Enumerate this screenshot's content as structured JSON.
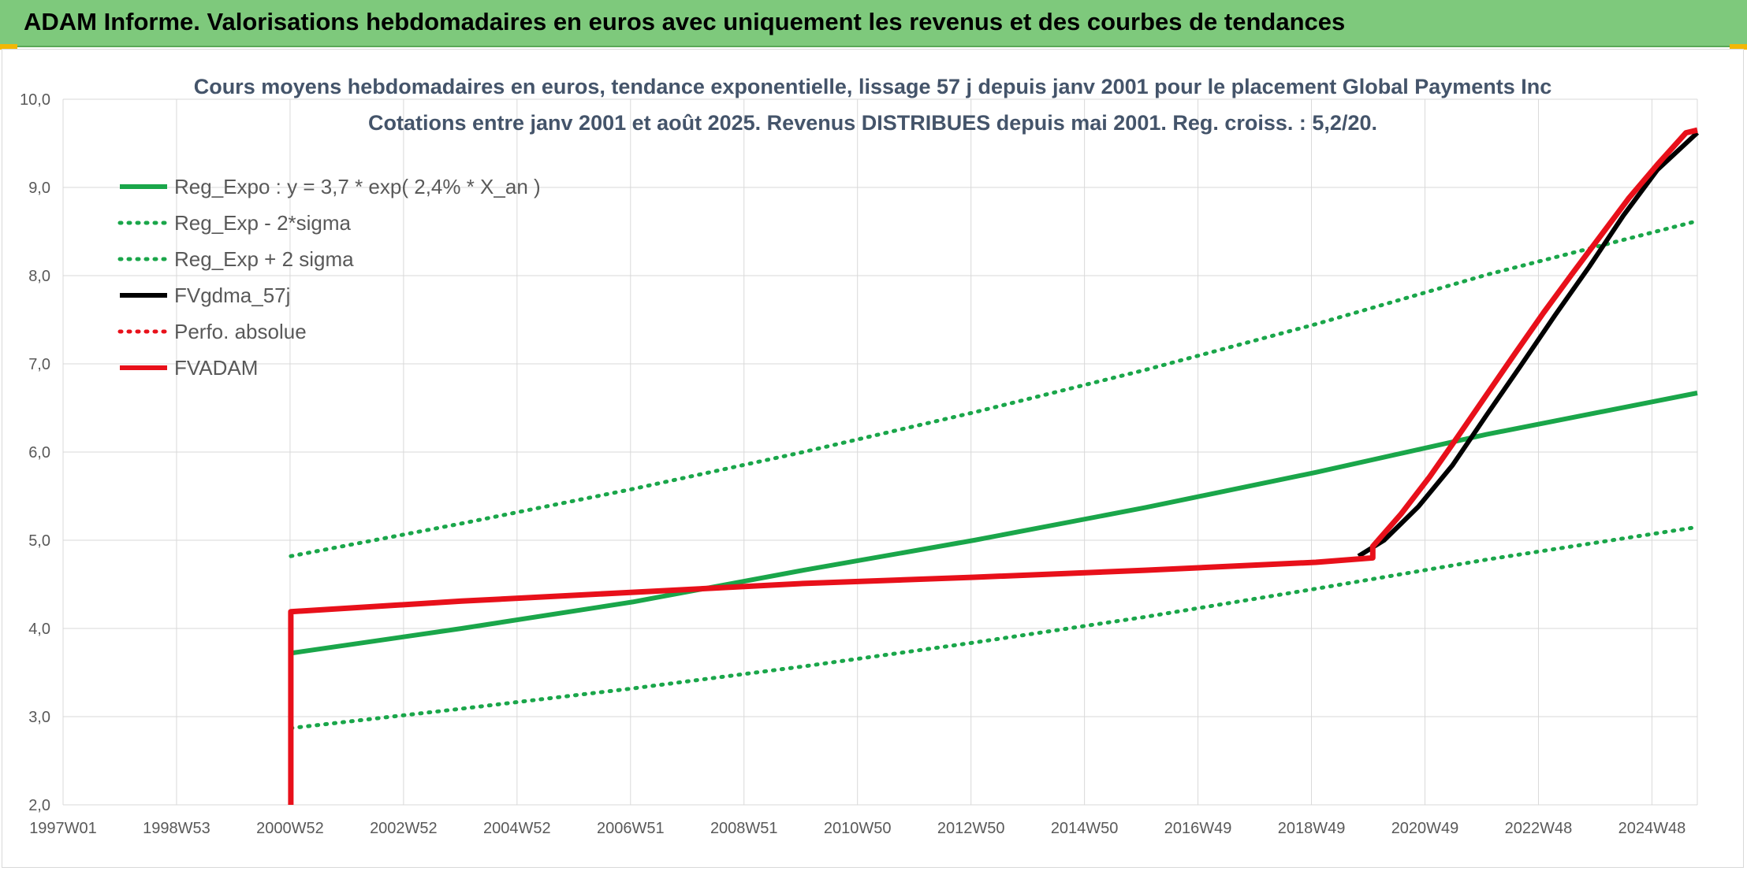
{
  "header": {
    "title": "ADAM Informe. Valorisations hebdomadaires en euros avec uniquement les revenus et des courbes de tendances"
  },
  "chart_data": {
    "type": "line",
    "title": "Cours moyens hebdomadaires en euros, tendance exponentielle, lissage 57 j depuis janv 2001 pour le placement Global Payments Inc",
    "subtitle": "Cotations entre janv 2001 et août 2025. Revenus DISTRIBUES depuis mai 2001. Reg. croiss. : 5,2/20.",
    "xlabel": "",
    "ylabel": "",
    "x_ticks": [
      "1997W01",
      "1998W53",
      "2000W52",
      "2002W52",
      "2004W52",
      "2006W51",
      "2008W51",
      "2010W50",
      "2012W50",
      "2014W50",
      "2016W49",
      "2018W49",
      "2020W49",
      "2022W48",
      "2024W48"
    ],
    "y_ticks": [
      "2,0",
      "3,0",
      "4,0",
      "5,0",
      "6,0",
      "7,0",
      "8,0",
      "9,0",
      "10,0"
    ],
    "xlim": [
      1997.0,
      2025.7
    ],
    "ylim": [
      2,
      10
    ],
    "grid": true,
    "legend_position": "top-left",
    "series": [
      {
        "name": "Reg_Expo : y = 3,7 * exp( 2,4% *  X_an )",
        "color": "#1aa64a",
        "style": "solid",
        "x": [
          2001.0,
          2004.0,
          2007.0,
          2010.0,
          2013.0,
          2016.0,
          2019.0,
          2022.0,
          2025.7
        ],
        "y": [
          3.72,
          4.0,
          4.3,
          4.66,
          5.0,
          5.37,
          5.77,
          6.2,
          6.67
        ]
      },
      {
        "name": "Reg_Exp - 2*sigma",
        "color": "#1aa64a",
        "style": "dotted",
        "x": [
          2001.0,
          2004.0,
          2007.0,
          2010.0,
          2013.0,
          2016.0,
          2019.0,
          2022.0,
          2025.7
        ],
        "y": [
          2.87,
          3.09,
          3.32,
          3.57,
          3.84,
          4.13,
          4.45,
          4.78,
          5.15
        ]
      },
      {
        "name": "Reg_Exp + 2 sigma",
        "color": "#1aa64a",
        "style": "dotted",
        "x": [
          2001.0,
          2004.0,
          2007.0,
          2010.0,
          2013.0,
          2016.0,
          2019.0,
          2022.0,
          2025.7
        ],
        "y": [
          4.82,
          5.19,
          5.58,
          6.0,
          6.45,
          6.93,
          7.45,
          8.01,
          8.62
        ]
      },
      {
        "name": "FVgdma_57j",
        "color": "#000000",
        "style": "solid",
        "x": [
          2019.75,
          2020.2,
          2020.8,
          2021.4,
          2022.0,
          2022.6,
          2023.2,
          2023.8,
          2024.4,
          2025.0,
          2025.7
        ],
        "y": [
          4.82,
          5.0,
          5.38,
          5.85,
          6.42,
          6.98,
          7.55,
          8.1,
          8.68,
          9.2,
          9.62
        ]
      },
      {
        "name": "Perfo. absolue",
        "color": "#e8101a",
        "style": "dotted",
        "x": [],
        "y": []
      },
      {
        "name": "FVADAM",
        "color": "#e8101a",
        "style": "solid",
        "x": [
          2001.0,
          2001.0,
          2004.0,
          2007.0,
          2010.0,
          2013.0,
          2016.0,
          2019.0,
          2020.0,
          2020.0,
          2020.5,
          2021.0,
          2021.5,
          2022.0,
          2022.5,
          2023.0,
          2023.5,
          2024.0,
          2024.5,
          2025.0,
          2025.5,
          2025.7
        ],
        "y": [
          2.0,
          4.19,
          4.31,
          4.41,
          4.51,
          4.58,
          4.66,
          4.75,
          4.8,
          4.93,
          5.3,
          5.72,
          6.18,
          6.65,
          7.12,
          7.58,
          8.02,
          8.45,
          8.88,
          9.26,
          9.62,
          9.65
        ]
      }
    ]
  }
}
